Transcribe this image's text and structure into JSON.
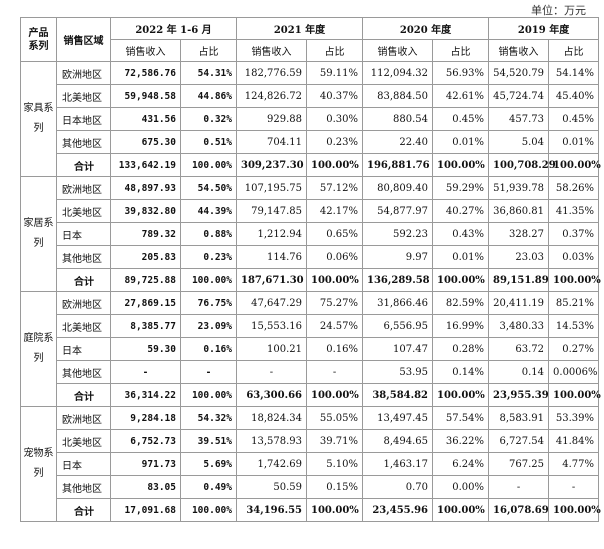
{
  "unit": "单位：万元",
  "headers": {
    "category": "产品系列",
    "region": "销售区域",
    "periods": [
      "2022 年 1-6 月",
      "2021 年度",
      "2020 年度",
      "2019 年度"
    ],
    "revenue": "销售收入",
    "ratio": "占比"
  },
  "groups": [
    {
      "name": "家具系列",
      "rows": [
        {
          "region": "欧洲地区",
          "vals": [
            "72,586.76",
            "54.31%",
            "182,776.59",
            "59.11%",
            "112,094.32",
            "56.93%",
            "54,520.79",
            "54.14%"
          ]
        },
        {
          "region": "北美地区",
          "vals": [
            "59,948.58",
            "44.86%",
            "124,826.72",
            "40.37%",
            "83,884.50",
            "42.61%",
            "45,724.74",
            "45.40%"
          ]
        },
        {
          "region": "日本地区",
          "vals": [
            "431.56",
            "0.32%",
            "929.88",
            "0.30%",
            "880.54",
            "0.45%",
            "457.73",
            "0.45%"
          ]
        },
        {
          "region": "其他地区",
          "vals": [
            "675.30",
            "0.51%",
            "704.11",
            "0.23%",
            "22.40",
            "0.01%",
            "5.04",
            "0.01%"
          ]
        },
        {
          "region": "合计",
          "total": true,
          "vals": [
            "133,642.19",
            "100.00%",
            "309,237.30",
            "100.00%",
            "196,881.76",
            "100.00%",
            "100,708.29",
            "100.00%"
          ]
        }
      ]
    },
    {
      "name": "家居系列",
      "rows": [
        {
          "region": "欧洲地区",
          "vals": [
            "48,897.93",
            "54.50%",
            "107,195.75",
            "57.12%",
            "80,809.40",
            "59.29%",
            "51,939.78",
            "58.26%"
          ]
        },
        {
          "region": "北美地区",
          "vals": [
            "39,832.80",
            "44.39%",
            "79,147.85",
            "42.17%",
            "54,877.97",
            "40.27%",
            "36,860.81",
            "41.35%"
          ]
        },
        {
          "region": "日本",
          "vals": [
            "789.32",
            "0.88%",
            "1,212.94",
            "0.65%",
            "592.23",
            "0.43%",
            "328.27",
            "0.37%"
          ]
        },
        {
          "region": "其他地区",
          "vals": [
            "205.83",
            "0.23%",
            "114.76",
            "0.06%",
            "9.97",
            "0.01%",
            "23.03",
            "0.03%"
          ]
        },
        {
          "region": "合计",
          "total": true,
          "vals": [
            "89,725.88",
            "100.00%",
            "187,671.30",
            "100.00%",
            "136,289.58",
            "100.00%",
            "89,151.89",
            "100.00%"
          ]
        }
      ]
    },
    {
      "name": "庭院系列",
      "rows": [
        {
          "region": "欧洲地区",
          "vals": [
            "27,869.15",
            "76.75%",
            "47,647.29",
            "75.27%",
            "31,866.46",
            "82.59%",
            "20,411.19",
            "85.21%"
          ]
        },
        {
          "region": "北美地区",
          "vals": [
            "8,385.77",
            "23.09%",
            "15,553.16",
            "24.57%",
            "6,556.95",
            "16.99%",
            "3,480.33",
            "14.53%"
          ]
        },
        {
          "region": "日本",
          "vals": [
            "59.30",
            "0.16%",
            "100.21",
            "0.16%",
            "107.47",
            "0.28%",
            "63.72",
            "0.27%"
          ]
        },
        {
          "region": "其他地区",
          "vals": [
            "-",
            "-",
            "-",
            "-",
            "53.95",
            "0.14%",
            "0.14",
            "0.0006%"
          ]
        },
        {
          "region": "合计",
          "total": true,
          "vals": [
            "36,314.22",
            "100.00%",
            "63,300.66",
            "100.00%",
            "38,584.82",
            "100.00%",
            "23,955.39",
            "100.00%"
          ]
        }
      ]
    },
    {
      "name": "宠物系列",
      "rows": [
        {
          "region": "欧洲地区",
          "vals": [
            "9,284.18",
            "54.32%",
            "18,824.34",
            "55.05%",
            "13,497.45",
            "57.54%",
            "8,583.91",
            "53.39%"
          ]
        },
        {
          "region": "北美地区",
          "vals": [
            "6,752.73",
            "39.51%",
            "13,578.93",
            "39.71%",
            "8,494.65",
            "36.22%",
            "6,727.54",
            "41.84%"
          ]
        },
        {
          "region": "日本",
          "vals": [
            "971.73",
            "5.69%",
            "1,742.69",
            "5.10%",
            "1,463.17",
            "6.24%",
            "767.25",
            "4.77%"
          ]
        },
        {
          "region": "其他地区",
          "vals": [
            "83.05",
            "0.49%",
            "50.59",
            "0.15%",
            "0.70",
            "0.00%",
            "-",
            "-"
          ]
        },
        {
          "region": "合计",
          "total": true,
          "vals": [
            "17,091.68",
            "100.00%",
            "34,196.55",
            "100.00%",
            "23,455.96",
            "100.00%",
            "16,078.69",
            "100.00%"
          ]
        }
      ]
    }
  ]
}
